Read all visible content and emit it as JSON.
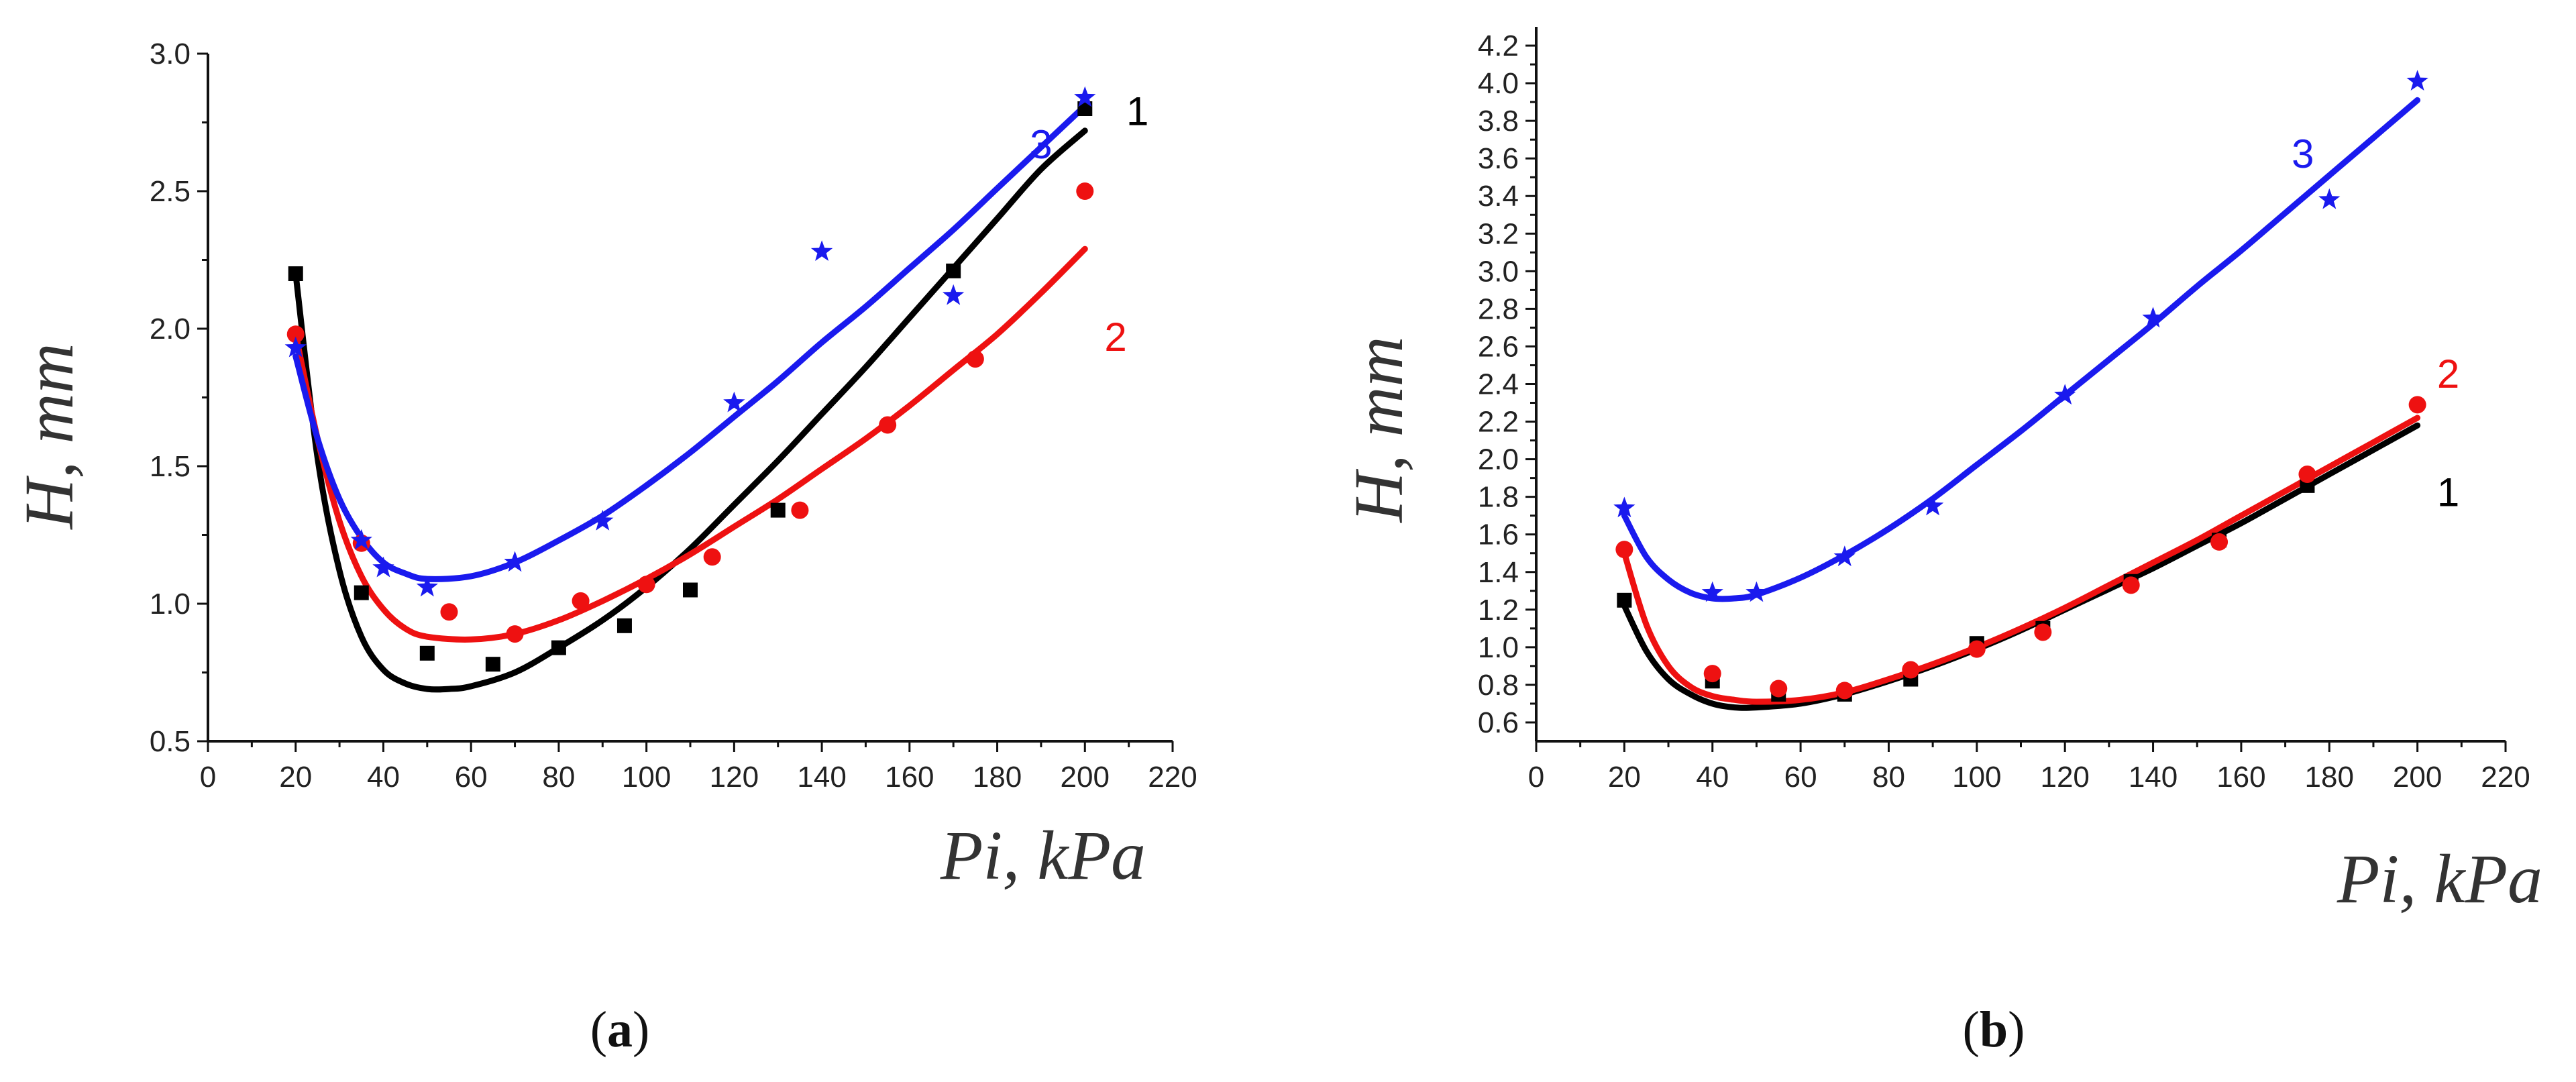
{
  "chart_data": [
    {
      "type": "scatter",
      "panel_label": {
        "open": "(",
        "letter": "a",
        "close": ")"
      },
      "xlabel": "Pi, kPa",
      "ylabel": "H, mm",
      "xlim": [
        0,
        220
      ],
      "ylim": [
        0.5,
        3.0
      ],
      "xticks": [
        0,
        20,
        40,
        60,
        80,
        100,
        120,
        140,
        160,
        180,
        200,
        220
      ],
      "yticks": [
        0.5,
        1.0,
        1.5,
        2.0,
        2.5,
        3.0
      ],
      "ytick_labels": [
        "0.5",
        "1.0",
        "1.5",
        "2.0",
        "2.5",
        "3.0"
      ],
      "series": [
        {
          "name": "1",
          "label": "1",
          "color": "#000000",
          "marker": "square",
          "points": [
            [
              20,
              2.2
            ],
            [
              35,
              1.04
            ],
            [
              50,
              0.82
            ],
            [
              65,
              0.78
            ],
            [
              80,
              0.84
            ],
            [
              95,
              0.92
            ],
            [
              110,
              1.05
            ],
            [
              130,
              1.34
            ],
            [
              170,
              2.21
            ],
            [
              200,
              2.8
            ]
          ],
          "fit": [
            [
              20,
              2.2
            ],
            [
              25,
              1.53
            ],
            [
              30,
              1.12
            ],
            [
              35,
              0.88
            ],
            [
              40,
              0.76
            ],
            [
              45,
              0.71
            ],
            [
              50,
              0.69
            ],
            [
              55,
              0.69
            ],
            [
              60,
              0.7
            ],
            [
              70,
              0.75
            ],
            [
              80,
              0.84
            ],
            [
              90,
              0.94
            ],
            [
              100,
              1.06
            ],
            [
              110,
              1.2
            ],
            [
              120,
              1.36
            ],
            [
              130,
              1.52
            ],
            [
              140,
              1.69
            ],
            [
              150,
              1.86
            ],
            [
              160,
              2.04
            ],
            [
              170,
              2.22
            ],
            [
              180,
              2.4
            ],
            [
              190,
              2.58
            ],
            [
              200,
              2.72
            ]
          ],
          "label_at": [
            212,
            2.74
          ]
        },
        {
          "name": "2",
          "label": "2",
          "color": "#ee1111",
          "marker": "circle",
          "points": [
            [
              20,
              1.98
            ],
            [
              35,
              1.22
            ],
            [
              55,
              0.97
            ],
            [
              70,
              0.89
            ],
            [
              85,
              1.01
            ],
            [
              100,
              1.07
            ],
            [
              115,
              1.17
            ],
            [
              135,
              1.34
            ],
            [
              155,
              1.65
            ],
            [
              175,
              1.89
            ],
            [
              200,
              2.5
            ]
          ],
          "fit": [
            [
              20,
              1.98
            ],
            [
              25,
              1.6
            ],
            [
              30,
              1.3
            ],
            [
              35,
              1.1
            ],
            [
              40,
              0.98
            ],
            [
              45,
              0.91
            ],
            [
              50,
              0.88
            ],
            [
              60,
              0.87
            ],
            [
              70,
              0.89
            ],
            [
              80,
              0.94
            ],
            [
              90,
              1.01
            ],
            [
              100,
              1.09
            ],
            [
              110,
              1.18
            ],
            [
              120,
              1.28
            ],
            [
              130,
              1.38
            ],
            [
              140,
              1.49
            ],
            [
              150,
              1.6
            ],
            [
              160,
              1.72
            ],
            [
              170,
              1.85
            ],
            [
              180,
              1.98
            ],
            [
              190,
              2.13
            ],
            [
              200,
              2.29
            ]
          ],
          "label_at": [
            207,
            1.92
          ]
        },
        {
          "name": "3",
          "label": "3",
          "color": "#1a1aee",
          "marker": "star",
          "points": [
            [
              20,
              1.93
            ],
            [
              35,
              1.23
            ],
            [
              40,
              1.13
            ],
            [
              50,
              1.06
            ],
            [
              70,
              1.15
            ],
            [
              90,
              1.3
            ],
            [
              120,
              1.73
            ],
            [
              140,
              2.28
            ],
            [
              170,
              2.12
            ],
            [
              200,
              2.84
            ]
          ],
          "fit": [
            [
              20,
              1.9
            ],
            [
              25,
              1.6
            ],
            [
              30,
              1.38
            ],
            [
              35,
              1.24
            ],
            [
              40,
              1.15
            ],
            [
              45,
              1.11
            ],
            [
              50,
              1.09
            ],
            [
              60,
              1.1
            ],
            [
              70,
              1.15
            ],
            [
              80,
              1.23
            ],
            [
              90,
              1.32
            ],
            [
              100,
              1.43
            ],
            [
              110,
              1.55
            ],
            [
              120,
              1.68
            ],
            [
              130,
              1.81
            ],
            [
              140,
              1.95
            ],
            [
              150,
              2.08
            ],
            [
              160,
              2.22
            ],
            [
              170,
              2.36
            ],
            [
              180,
              2.51
            ],
            [
              190,
              2.66
            ],
            [
              200,
              2.81
            ]
          ],
          "label_at": [
            190,
            2.62
          ]
        }
      ]
    },
    {
      "type": "scatter",
      "panel_label": {
        "open": "(",
        "letter": "b",
        "close": ")"
      },
      "xlabel": "Pi, kPa",
      "ylabel": "H, mm",
      "xlim": [
        0,
        220
      ],
      "ylim": [
        0.5,
        4.3
      ],
      "xticks": [
        0,
        20,
        40,
        60,
        80,
        100,
        120,
        140,
        160,
        180,
        200,
        220
      ],
      "yticks": [
        0.6,
        0.8,
        1.0,
        1.2,
        1.4,
        1.6,
        1.8,
        2.0,
        2.2,
        2.4,
        2.6,
        2.8,
        3.0,
        3.2,
        3.4,
        3.6,
        3.8,
        4.0,
        4.2
      ],
      "ytick_labels": [
        "0.6",
        "0.8",
        "1.0",
        "1.2",
        "1.4",
        "1.6",
        "1.8",
        "2.0",
        "2.2",
        "2.4",
        "2.6",
        "2.8",
        "3.0",
        "3.2",
        "3.4",
        "3.6",
        "3.8",
        "4.0",
        "4.2"
      ],
      "series": [
        {
          "name": "1",
          "label": "1",
          "color": "#000000",
          "marker": "square",
          "points": [
            [
              20,
              1.25
            ],
            [
              40,
              0.82
            ],
            [
              55,
              0.75
            ],
            [
              70,
              0.75
            ],
            [
              85,
              0.83
            ],
            [
              100,
              1.02
            ],
            [
              115,
              1.1
            ],
            [
              135,
              1.35
            ],
            [
              155,
              1.57
            ],
            [
              175,
              1.86
            ]
          ],
          "fit": [
            [
              20,
              1.22
            ],
            [
              25,
              0.98
            ],
            [
              30,
              0.83
            ],
            [
              35,
              0.75
            ],
            [
              40,
              0.7
            ],
            [
              45,
              0.68
            ],
            [
              50,
              0.68
            ],
            [
              60,
              0.7
            ],
            [
              70,
              0.75
            ],
            [
              80,
              0.82
            ],
            [
              90,
              0.9
            ],
            [
              100,
              0.99
            ],
            [
              110,
              1.09
            ],
            [
              120,
              1.2
            ],
            [
              130,
              1.31
            ],
            [
              140,
              1.42
            ],
            [
              150,
              1.54
            ],
            [
              160,
              1.66
            ],
            [
              170,
              1.79
            ],
            [
              180,
              1.92
            ],
            [
              190,
              2.05
            ],
            [
              200,
              2.18
            ]
          ],
          "label_at": [
            207,
            1.75
          ]
        },
        {
          "name": "2",
          "label": "2",
          "color": "#ee1111",
          "marker": "circle",
          "points": [
            [
              20,
              1.52
            ],
            [
              40,
              0.86
            ],
            [
              55,
              0.78
            ],
            [
              70,
              0.77
            ],
            [
              85,
              0.88
            ],
            [
              100,
              0.99
            ],
            [
              115,
              1.08
            ],
            [
              135,
              1.33
            ],
            [
              155,
              1.56
            ],
            [
              175,
              1.92
            ],
            [
              200,
              2.29
            ]
          ],
          "fit": [
            [
              20,
              1.5
            ],
            [
              25,
              1.12
            ],
            [
              30,
              0.9
            ],
            [
              35,
              0.79
            ],
            [
              40,
              0.74
            ],
            [
              45,
              0.72
            ],
            [
              50,
              0.71
            ],
            [
              60,
              0.72
            ],
            [
              70,
              0.76
            ],
            [
              80,
              0.83
            ],
            [
              90,
              0.91
            ],
            [
              100,
              1.0
            ],
            [
              110,
              1.1
            ],
            [
              120,
              1.21
            ],
            [
              130,
              1.33
            ],
            [
              140,
              1.45
            ],
            [
              150,
              1.57
            ],
            [
              160,
              1.7
            ],
            [
              170,
              1.83
            ],
            [
              180,
              1.96
            ],
            [
              190,
              2.09
            ],
            [
              200,
              2.22
            ]
          ],
          "label_at": [
            207,
            2.38
          ]
        },
        {
          "name": "3",
          "label": "3",
          "color": "#1a1aee",
          "marker": "star",
          "points": [
            [
              20,
              1.74
            ],
            [
              40,
              1.29
            ],
            [
              50,
              1.29
            ],
            [
              70,
              1.48
            ],
            [
              90,
              1.75
            ],
            [
              120,
              2.34
            ],
            [
              140,
              2.75
            ],
            [
              180,
              3.38
            ],
            [
              200,
              4.01
            ]
          ],
          "fit": [
            [
              20,
              1.7
            ],
            [
              25,
              1.48
            ],
            [
              30,
              1.36
            ],
            [
              35,
              1.29
            ],
            [
              40,
              1.26
            ],
            [
              45,
              1.26
            ],
            [
              50,
              1.28
            ],
            [
              60,
              1.37
            ],
            [
              70,
              1.49
            ],
            [
              80,
              1.63
            ],
            [
              90,
              1.79
            ],
            [
              100,
              1.97
            ],
            [
              110,
              2.15
            ],
            [
              120,
              2.34
            ],
            [
              130,
              2.53
            ],
            [
              140,
              2.72
            ],
            [
              150,
              2.92
            ],
            [
              160,
              3.11
            ],
            [
              170,
              3.31
            ],
            [
              180,
              3.51
            ],
            [
              190,
              3.71
            ],
            [
              200,
              3.91
            ]
          ],
          "label_at": [
            174,
            3.55
          ]
        }
      ]
    }
  ]
}
